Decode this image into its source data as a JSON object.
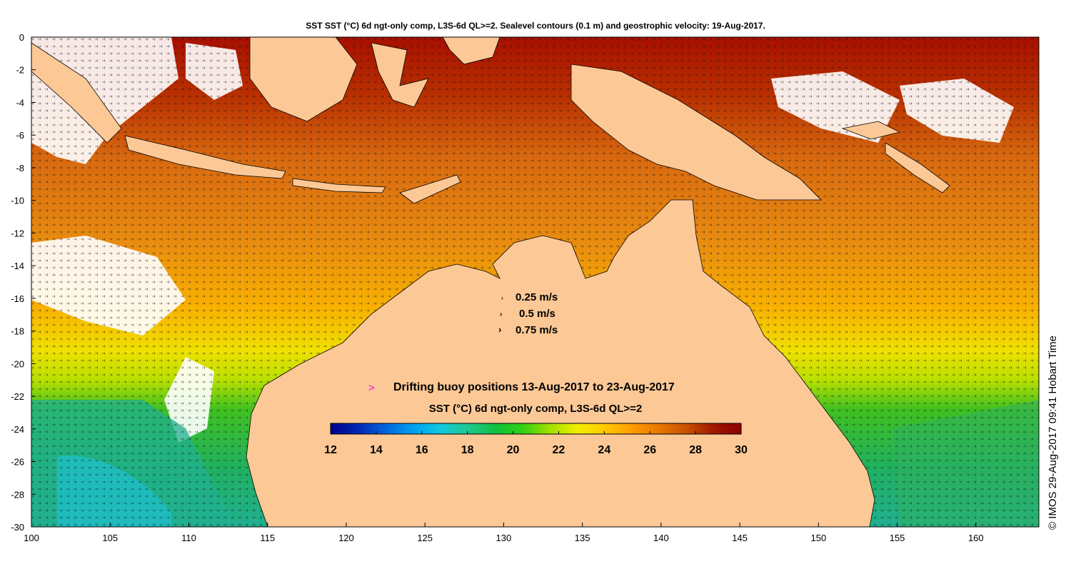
{
  "title": "SST SST (°C) 6d ngt-only comp, L3S-6d QL>=2. Sealevel contours (0.1 m) and geostrophic velocity: 19-Aug-2017.",
  "timestamp": "© IMOS 29-Aug-2017 09:41 Hobart Time",
  "velocity_legend": {
    "items": [
      "0.25 m/s",
      "0.5 m/s",
      "0.75 m/s"
    ],
    "arrow_glyph": ">"
  },
  "buoy_legend": {
    "marker": ">",
    "marker_color": "#ff00ff",
    "text": "Drifting buoy positions 13-Aug-2017 to 23-Aug-2017"
  },
  "colorbar": {
    "title": "SST (°C) 6d ngt-only comp, L3S-6d QL>=2",
    "ticks": [
      "12",
      "14",
      "16",
      "18",
      "20",
      "22",
      "24",
      "26",
      "28",
      "30"
    ],
    "range": [
      12,
      30
    ],
    "colors": [
      "#00008c",
      "#0028b4",
      "#0064dc",
      "#00a0f0",
      "#10c8e0",
      "#20c890",
      "#10c040",
      "#30d010",
      "#a0e000",
      "#f0f000",
      "#ffc800",
      "#ff9c00",
      "#e87800",
      "#c85000",
      "#a01800",
      "#8c0000"
    ]
  },
  "map": {
    "x_ticks": [
      "100",
      "105",
      "110",
      "115",
      "120",
      "125",
      "130",
      "135",
      "140",
      "145",
      "150",
      "155",
      "160"
    ],
    "x_range": [
      100,
      164
    ],
    "y_ticks": [
      "0",
      "-2",
      "-4",
      "-6",
      "-8",
      "-10",
      "-12",
      "-14",
      "-16",
      "-18",
      "-20",
      "-22",
      "-24",
      "-26",
      "-28",
      "-30"
    ],
    "y_range": [
      -30,
      0
    ],
    "land_color": "#fcc896",
    "no_data_color": "#ffffff"
  }
}
